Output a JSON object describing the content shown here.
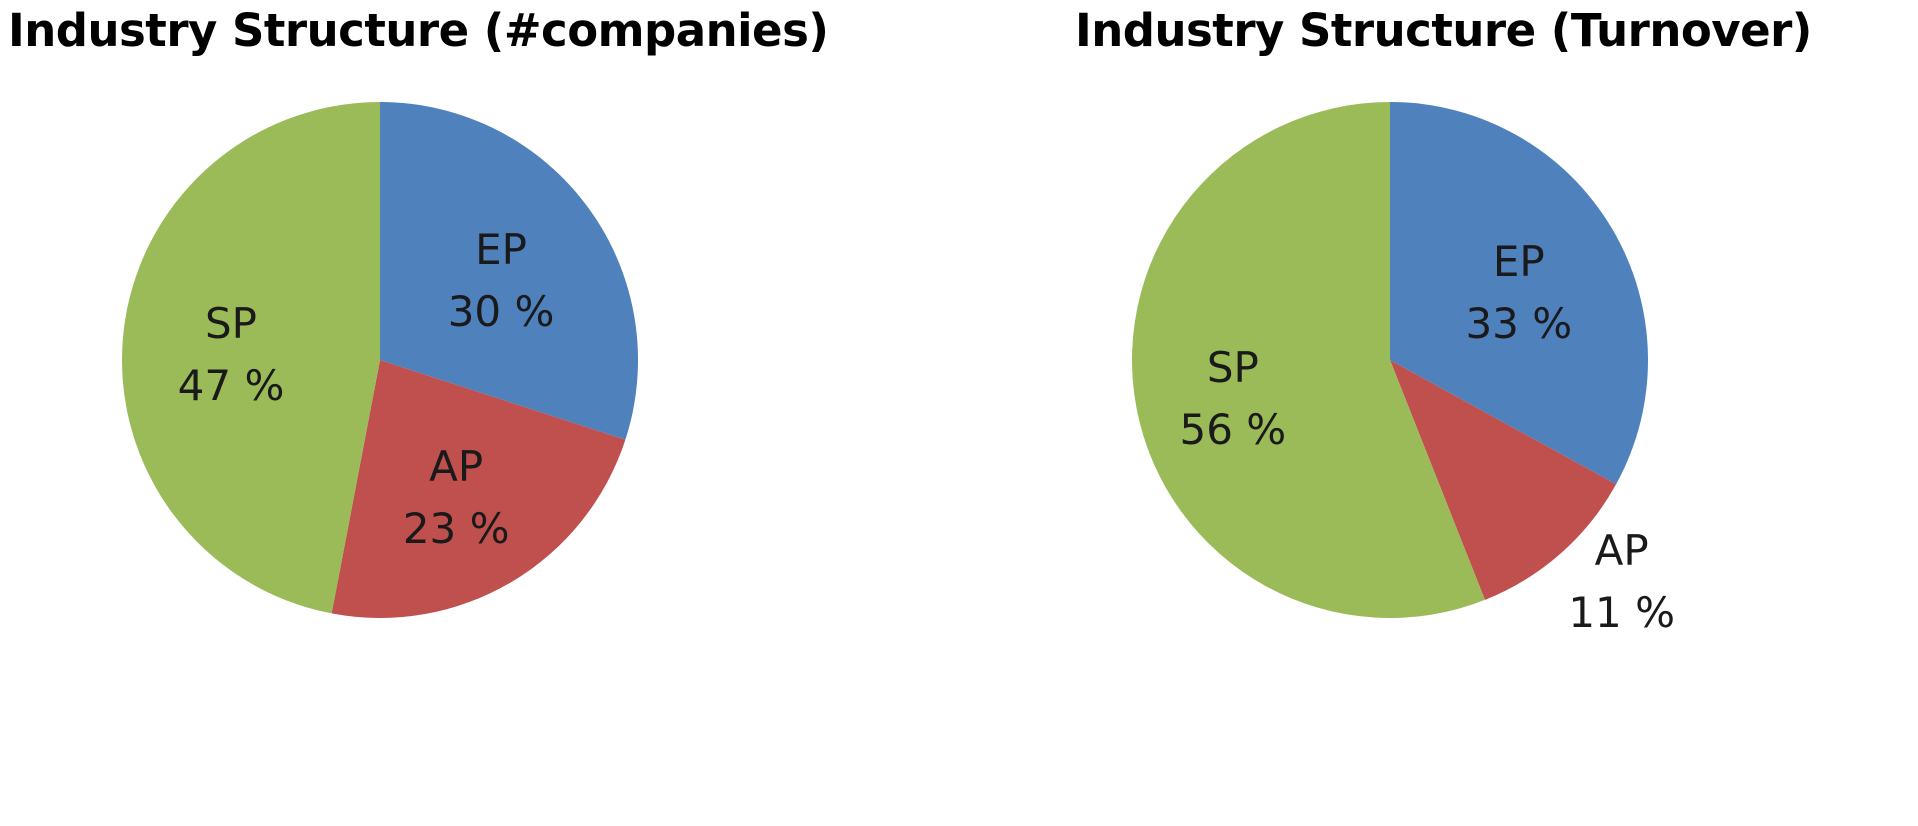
{
  "chart_data": [
    {
      "type": "pie",
      "title": "Industry Structure (#companies)",
      "slices": [
        {
          "name": "EP",
          "value": 30,
          "label": "30 %",
          "color": "#4F81BD"
        },
        {
          "name": "AP",
          "value": 23,
          "label": "23 %",
          "color": "#C0504D"
        },
        {
          "name": "SP",
          "value": 47,
          "label": "47 %",
          "color": "#9BBB59"
        }
      ],
      "start": "12 o'clock",
      "direction": "clockwise",
      "legend": "none"
    },
    {
      "type": "pie",
      "title": "Industry Structure (Turnover)",
      "slices": [
        {
          "name": "EP",
          "value": 33,
          "label": "33 %",
          "color": "#4F81BD"
        },
        {
          "name": "AP",
          "value": 11,
          "label": "11 %",
          "color": "#C0504D"
        },
        {
          "name": "SP",
          "value": 56,
          "label": "56 %",
          "color": "#9BBB59"
        }
      ],
      "start": "12 o'clock",
      "direction": "clockwise",
      "legend": "none"
    }
  ]
}
